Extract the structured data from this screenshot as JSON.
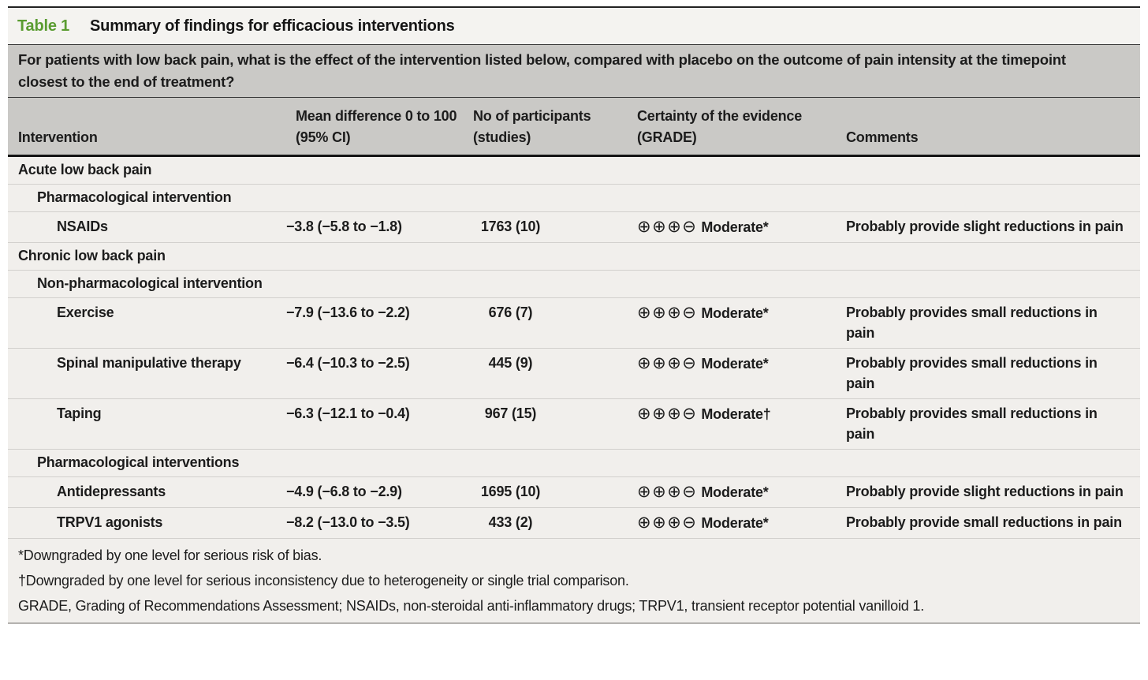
{
  "table": {
    "label": "Table 1",
    "title": "Summary of findings for efficacious interventions",
    "question": "For patients with low back pain, what is the effect of the intervention listed below, compared with placebo on the outcome of pain intensity at the timepoint closest to the end of treatment?",
    "columns": {
      "intervention": "Intervention",
      "mean_difference": "Mean difference 0 to 100 (95% CI)",
      "participants": "No of participants (studies)",
      "certainty": "Certainty of the evidence (GRADE)",
      "comments": "Comments"
    },
    "rows": [
      {
        "type": "section",
        "label": "Acute low back pain"
      },
      {
        "type": "subsection",
        "label": "Pharmacological intervention"
      },
      {
        "type": "data",
        "intervention": "NSAIDs",
        "mean_difference": "−3.8 (−5.8 to −1.8)",
        "participants": "1763 (10)",
        "grade_symbols": "⊕⊕⊕⊖",
        "grade_label": "Moderate*",
        "comments": "Probably provide slight reductions in pain"
      },
      {
        "type": "section",
        "label": "Chronic low back pain"
      },
      {
        "type": "subsection",
        "label": "Non-pharmacological intervention"
      },
      {
        "type": "data",
        "intervention": "Exercise",
        "mean_difference": "−7.9 (−13.6 to −2.2)",
        "participants": "676 (7)",
        "grade_symbols": "⊕⊕⊕⊖",
        "grade_label": "Moderate*",
        "comments": "Probably provides small reductions in pain"
      },
      {
        "type": "data",
        "intervention": "Spinal manipulative therapy",
        "mean_difference": "−6.4 (−10.3 to −2.5)",
        "participants": "445 (9)",
        "grade_symbols": "⊕⊕⊕⊖",
        "grade_label": "Moderate*",
        "comments": "Probably provides small reductions in pain"
      },
      {
        "type": "data",
        "intervention": "Taping",
        "mean_difference": "−6.3 (−12.1 to −0.4)",
        "participants": "967 (15)",
        "grade_symbols": "⊕⊕⊕⊖",
        "grade_label": "Moderate†",
        "comments": "Probably provides small reductions in pain"
      },
      {
        "type": "subsection",
        "label": "Pharmacological interventions"
      },
      {
        "type": "data",
        "intervention": "Antidepressants",
        "mean_difference": "−4.9 (−6.8 to −2.9)",
        "participants": "1695 (10)",
        "grade_symbols": "⊕⊕⊕⊖",
        "grade_label": "Moderate*",
        "comments": "Probably provide slight reductions in pain"
      },
      {
        "type": "data",
        "intervention": "TRPV1 agonists",
        "mean_difference": "−8.2 (−13.0 to −3.5)",
        "participants": "433 (2)",
        "grade_symbols": "⊕⊕⊕⊖",
        "grade_label": "Moderate*",
        "comments": "Probably provide small reductions in pain"
      }
    ],
    "footnotes": [
      "*Downgraded by one level for serious risk of bias.",
      "†Downgraded by one level for serious inconsistency due to heterogeneity or single trial comparison.",
      "GRADE, Grading of Recommendations Assessment; NSAIDs, non-steroidal anti-inflammatory drugs; TRPV1, transient receptor potential vanilloid 1."
    ],
    "colors": {
      "accent_green": "#5a9c31",
      "header_gray": "#cac9c6",
      "row_background": "#f1efec"
    }
  }
}
